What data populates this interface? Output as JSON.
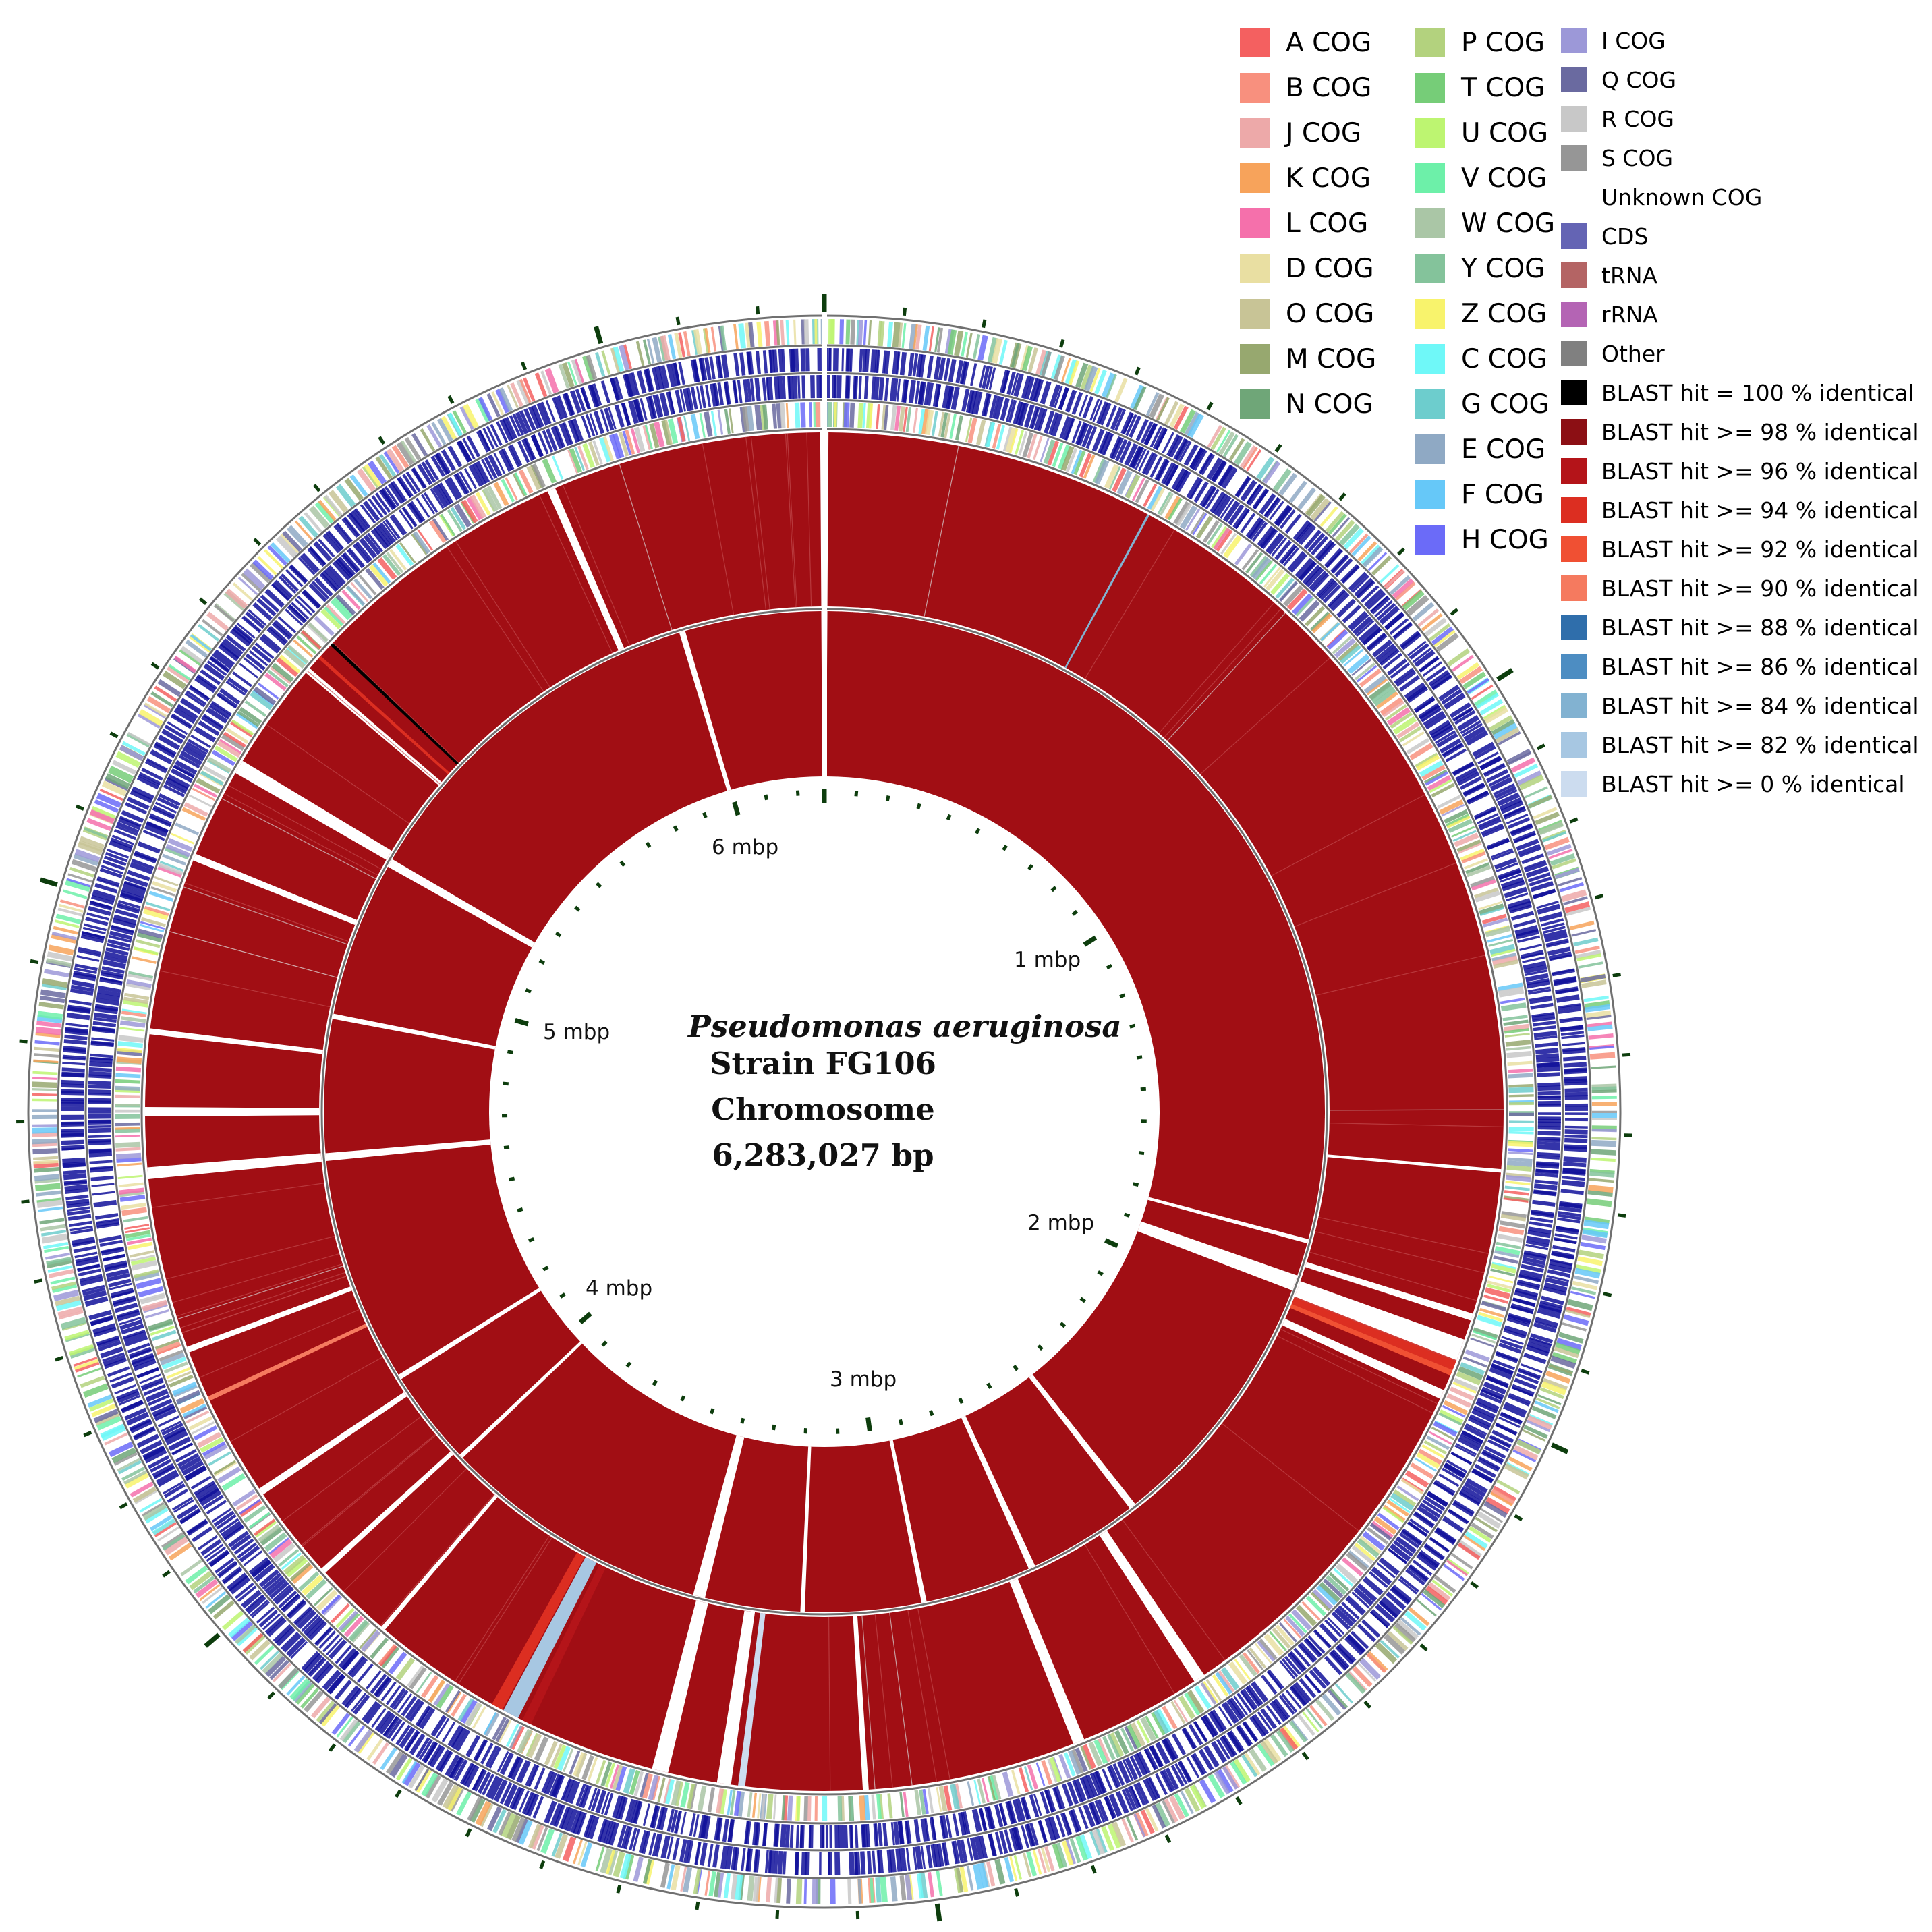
{
  "title": {
    "organism": "Pseudomonas aeruginosa",
    "strain": "Strain FG106",
    "molecule": "Chromosome",
    "length": "6,283,027 bp"
  },
  "scale_labels": [
    "6 mbp",
    "1 mbp",
    "5 mbp",
    "2 mbp",
    "4 mbp",
    "3 mbp"
  ],
  "genome_length_bp": 6283027,
  "legend": {
    "col1": [
      {
        "label": "A COG",
        "color": "#f46060"
      },
      {
        "label": "B COG",
        "color": "#f8907e"
      },
      {
        "label": "J COG",
        "color": "#eda9a9"
      },
      {
        "label": "K COG",
        "color": "#f7a35b"
      },
      {
        "label": "L COG",
        "color": "#f570ab"
      },
      {
        "label": "D COG",
        "color": "#e9dfa2"
      },
      {
        "label": "O COG",
        "color": "#c8c496"
      },
      {
        "label": "M COG",
        "color": "#97a86f"
      },
      {
        "label": "N COG",
        "color": "#6fa678"
      }
    ],
    "col2": [
      {
        "label": "P COG",
        "color": "#b3d27e"
      },
      {
        "label": "T COG",
        "color": "#76cd78"
      },
      {
        "label": "U COG",
        "color": "#bdf571"
      },
      {
        "label": "V COG",
        "color": "#6df0a9"
      },
      {
        "label": "W COG",
        "color": "#aac6a6"
      },
      {
        "label": "Y COG",
        "color": "#84c39b"
      },
      {
        "label": "Z COG",
        "color": "#f8f36c"
      },
      {
        "label": "C COG",
        "color": "#6ff8f8"
      },
      {
        "label": "G COG",
        "color": "#6dcdcd"
      },
      {
        "label": "E COG",
        "color": "#8fa9c4"
      },
      {
        "label": "F COG",
        "color": "#66c8f8"
      },
      {
        "label": "H COG",
        "color": "#6b6bf8"
      }
    ],
    "col3": [
      {
        "label": "I COG",
        "color": "#9c98d8"
      },
      {
        "label": "Q COG",
        "color": "#6a6aa0"
      },
      {
        "label": "R COG",
        "color": "#c8c8c8"
      },
      {
        "label": "S COG",
        "color": "#969696"
      },
      {
        "label": "Unknown COG",
        "color": "#ffffff"
      },
      {
        "label": "CDS",
        "color": "#6464b4"
      },
      {
        "label": "tRNA",
        "color": "#b46464"
      },
      {
        "label": "rRNA",
        "color": "#b464b4"
      },
      {
        "label": "Other",
        "color": "#808080"
      },
      {
        "label": "BLAST hit = 100 % identical",
        "color": "#000000"
      },
      {
        "label": "BLAST hit >= 98 % identical",
        "color": "#8c0f14"
      },
      {
        "label": "BLAST hit >= 96 % identical",
        "color": "#b41419"
      },
      {
        "label": "BLAST hit >= 94 % identical",
        "color": "#dc2e21"
      },
      {
        "label": "BLAST hit >= 92 % identical",
        "color": "#f05033"
      },
      {
        "label": "BLAST hit >= 90 % identical",
        "color": "#f57a5f"
      },
      {
        "label": "BLAST hit >= 88 % identical",
        "color": "#2f6eab"
      },
      {
        "label": "BLAST hit >= 86 % identical",
        "color": "#4d8dc2"
      },
      {
        "label": "BLAST hit >= 84 % identical",
        "color": "#82b2d1"
      },
      {
        "label": "BLAST hit >= 82 % identical",
        "color": "#a7c7e2"
      },
      {
        "label": "BLAST hit >= 0 % identical",
        "color": "#ccdcef"
      }
    ]
  },
  "colors": {
    "blast_main": "#a10e14",
    "cds_track": "#11119a",
    "ring_outline": "#707070",
    "tick": "#0d3d0d"
  }
}
